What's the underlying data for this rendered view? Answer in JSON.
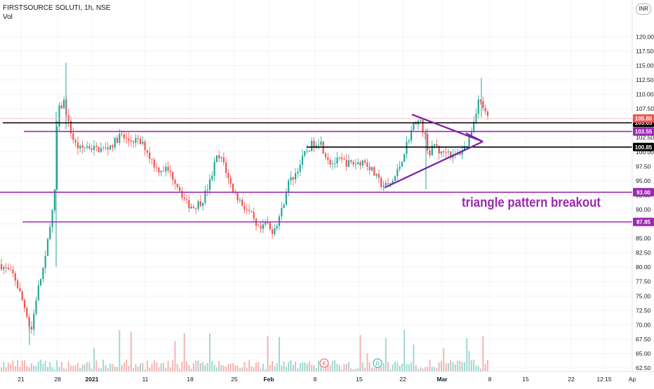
{
  "header": {
    "symbol": "FIRSTSOURCE SOLUTI",
    "interval": "1h",
    "exchange": "NSE",
    "volume_label": "Vol",
    "currency": "INR"
  },
  "colors": {
    "up": "#26a69a",
    "down": "#ef5350",
    "vol_up": "#9fd9d2",
    "vol_down": "#f5b5b3",
    "level_line": "#9c27b0",
    "support_line": "#000000",
    "triangle": "#7b1fa2",
    "annotation": "#9c27b0",
    "last_price_badge": "#ef5350"
  },
  "chart_data": {
    "type": "candlestick",
    "ylim": [
      61.5,
      120.5
    ],
    "y_ticks": [
      "62.50",
      "65.00",
      "67.50",
      "70.00",
      "72.50",
      "75.00",
      "77.50",
      "80.00",
      "82.50",
      "85.00",
      "87.50",
      "90.00",
      "92.50",
      "95.00",
      "97.50",
      "100.00",
      "102.50",
      "105.00",
      "107.50",
      "110.00",
      "112.50",
      "115.00",
      "117.50",
      "120.00"
    ],
    "x_ticks": [
      "21",
      "28",
      "2021",
      "11",
      "18",
      "25",
      "Feb",
      "8",
      "15",
      "22",
      "Mar",
      "8",
      "15",
      "22",
      "12:15",
      "Ap"
    ],
    "price_path": [
      [
        0,
        80.5
      ],
      [
        20,
        78.5
      ],
      [
        38,
        72
      ],
      [
        44,
        68.5
      ],
      [
        52,
        75
      ],
      [
        60,
        79
      ],
      [
        66,
        82
      ],
      [
        70,
        87
      ],
      [
        74,
        89
      ],
      [
        78,
        93
      ],
      [
        82,
        107
      ],
      [
        88,
        108
      ],
      [
        92,
        109
      ],
      [
        96,
        105.5
      ],
      [
        100,
        104
      ],
      [
        106,
        101.5
      ],
      [
        114,
        100.5
      ],
      [
        124,
        101
      ],
      [
        136,
        100.5
      ],
      [
        150,
        100.5
      ],
      [
        162,
        101.5
      ],
      [
        172,
        103
      ],
      [
        180,
        102
      ],
      [
        194,
        102
      ],
      [
        206,
        101
      ],
      [
        214,
        99
      ],
      [
        224,
        97
      ],
      [
        238,
        97
      ],
      [
        250,
        95
      ],
      [
        258,
        93
      ],
      [
        266,
        91
      ],
      [
        276,
        90.5
      ],
      [
        288,
        91.5
      ],
      [
        300,
        95
      ],
      [
        308,
        99
      ],
      [
        318,
        98.5
      ],
      [
        326,
        95
      ],
      [
        336,
        92.5
      ],
      [
        348,
        90.5
      ],
      [
        358,
        89
      ],
      [
        366,
        86.5
      ],
      [
        374,
        86.5
      ],
      [
        380,
        88
      ],
      [
        386,
        86
      ],
      [
        394,
        87.5
      ],
      [
        402,
        90
      ],
      [
        410,
        94.5
      ],
      [
        420,
        96
      ],
      [
        428,
        98
      ],
      [
        436,
        100
      ],
      [
        446,
        101.5
      ],
      [
        456,
        102
      ],
      [
        462,
        100
      ],
      [
        472,
        98
      ],
      [
        484,
        98.5
      ],
      [
        496,
        98
      ],
      [
        508,
        98
      ],
      [
        518,
        98.5
      ],
      [
        526,
        97.5
      ],
      [
        534,
        96
      ],
      [
        542,
        94.5
      ],
      [
        552,
        94
      ],
      [
        560,
        95
      ],
      [
        568,
        97
      ],
      [
        576,
        100
      ],
      [
        584,
        103
      ],
      [
        592,
        105.5
      ],
      [
        600,
        105
      ],
      [
        606,
        102.5
      ],
      [
        612,
        99.5
      ],
      [
        620,
        101.5
      ],
      [
        628,
        99.5
      ],
      [
        636,
        100.5
      ],
      [
        646,
        99
      ],
      [
        656,
        100
      ],
      [
        664,
        101
      ],
      [
        672,
        104
      ],
      [
        678,
        107
      ],
      [
        682,
        109
      ],
      [
        688,
        108
      ],
      [
        694,
        105.8
      ]
    ],
    "levels": [
      {
        "price": 105.05,
        "label": "105.05",
        "kind": "support",
        "x_start": 4
      },
      {
        "price": 103.55,
        "label": "103.55",
        "kind": "level",
        "x_start": 34
      },
      {
        "price": 100.85,
        "label": "100.85",
        "kind": "support",
        "x_start": 437
      },
      {
        "price": 93.0,
        "label": "93.00",
        "kind": "level",
        "x_start": 0
      },
      {
        "price": 87.85,
        "label": "87.85",
        "kind": "level",
        "x_start": 32
      }
    ],
    "last_price": {
      "price": 105.8,
      "label": "105.80"
    },
    "triangle": {
      "apex": [
        688,
        101.8
      ],
      "top": [
        587,
        106.5
      ],
      "bottom": [
        548,
        93.8
      ]
    },
    "annotation": "triangle pattern breakout",
    "event_markers": [
      "E",
      "D"
    ]
  }
}
